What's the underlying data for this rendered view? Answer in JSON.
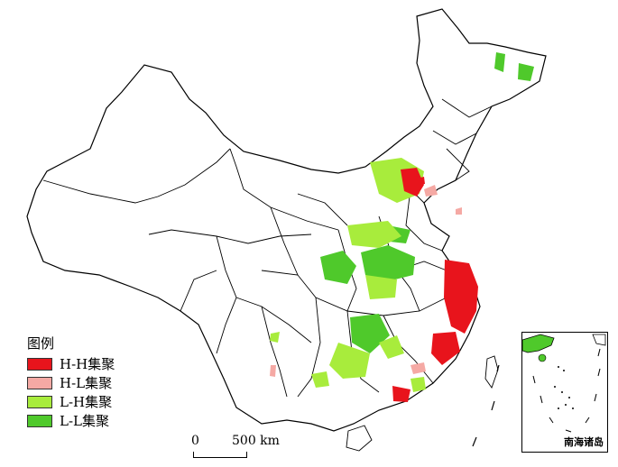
{
  "legend": {
    "title": "图例",
    "items": [
      {
        "label": "H-H集聚",
        "color": "#e8141c"
      },
      {
        "label": "H-L集聚",
        "color": "#f5a9a4"
      },
      {
        "label": "L-H集聚",
        "color": "#a8ec3c"
      },
      {
        "label": "L-L集聚",
        "color": "#4fc92b"
      }
    ]
  },
  "scale_bar": {
    "start": "0",
    "end": "500 km"
  },
  "inset": {
    "label": "南海诸岛"
  },
  "colors": {
    "boundary": "#000000",
    "background": "#ffffff"
  }
}
